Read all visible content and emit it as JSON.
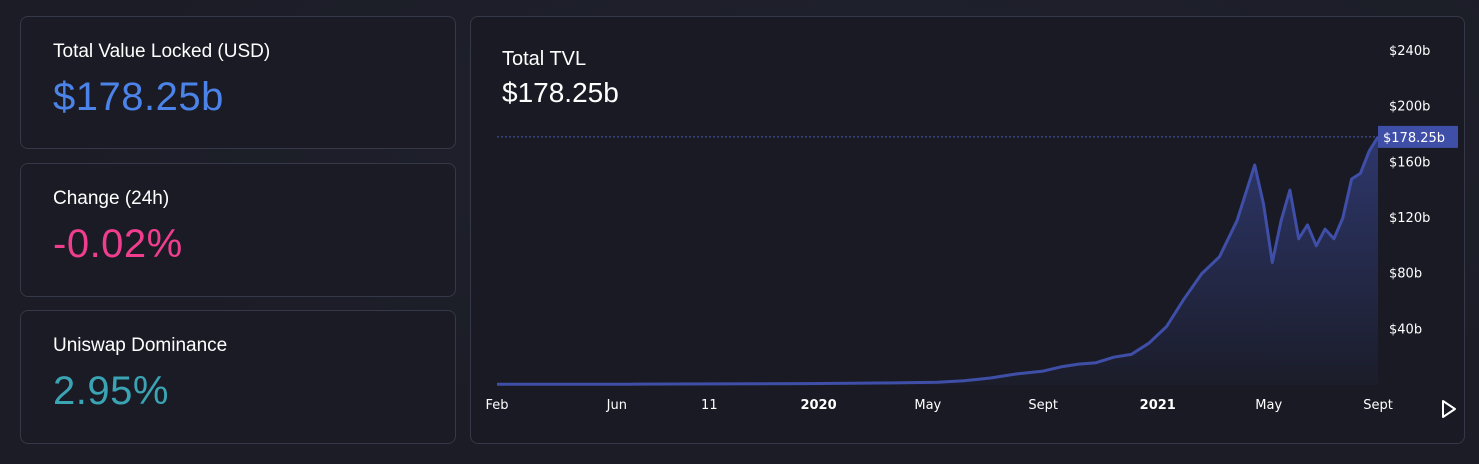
{
  "cards": {
    "tvl": {
      "label": "Total Value Locked (USD)",
      "value": "$178.25b",
      "color": "#4b83e9"
    },
    "change": {
      "label": "Change (24h)",
      "value": "-0.02%",
      "color": "#f03e8f"
    },
    "dominance": {
      "label": "Uniswap Dominance",
      "value": "2.95%",
      "color": "#3aa4b4"
    }
  },
  "chart": {
    "title": "Total TVL",
    "value": "$178.25b",
    "current_marker": "$178.25b",
    "line_color": "#3f4fa8",
    "icons": {
      "play": "play-icon"
    }
  },
  "chart_data": {
    "type": "area",
    "title": "Total TVL",
    "xlabel": "",
    "ylabel": "",
    "ylim": [
      0,
      250
    ],
    "y_ticks": [
      40,
      80,
      120,
      160,
      200,
      240
    ],
    "y_tick_labels": [
      "$40b",
      "$80b",
      "$120b",
      "$160b",
      "$200b",
      "$240b"
    ],
    "x_tick_labels": [
      "Feb",
      "Jun",
      "11",
      "2020",
      "May",
      "Sept",
      "2021",
      "May",
      "Sept"
    ],
    "x_tick_bold": [
      false,
      false,
      false,
      true,
      false,
      false,
      true,
      false,
      false
    ],
    "x_tick_positions": [
      0,
      0.136,
      0.241,
      0.365,
      0.489,
      0.62,
      0.75,
      0.876,
      1.0
    ],
    "last_value": 178.25,
    "series": [
      {
        "x": [
          0,
          0.05,
          0.1,
          0.15,
          0.2,
          0.25,
          0.3,
          0.35,
          0.4,
          0.45,
          0.5,
          0.53,
          0.56,
          0.59,
          0.62,
          0.64,
          0.66,
          0.68,
          0.7,
          0.72,
          0.74,
          0.76,
          0.78,
          0.8,
          0.82,
          0.84,
          0.86,
          0.87,
          0.88,
          0.89,
          0.9,
          0.91,
          0.92,
          0.93,
          0.94,
          0.95,
          0.96,
          0.97,
          0.98,
          0.99,
          1.0
        ],
        "values": [
          0.5,
          0.5,
          0.6,
          0.6,
          0.7,
          0.8,
          0.9,
          1.0,
          1.2,
          1.5,
          2,
          3,
          5,
          8,
          10,
          13,
          15,
          16,
          20,
          22,
          30,
          42,
          62,
          80,
          92,
          118,
          158,
          130,
          88,
          118,
          140,
          105,
          115,
          100,
          112,
          105,
          120,
          148,
          152,
          168,
          178.25
        ]
      }
    ]
  }
}
